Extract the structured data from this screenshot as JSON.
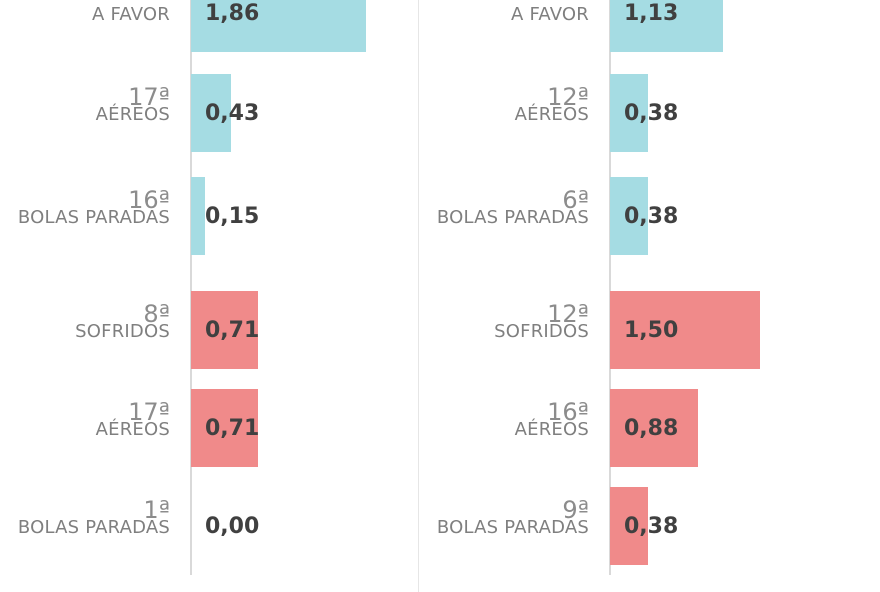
{
  "chart_data": [
    {
      "type": "bar",
      "orientation": "horizontal",
      "rows": [
        {
          "rank": "",
          "category": "A FAVOR",
          "value": 1.86,
          "value_label": "1,86",
          "group": "favor"
        },
        {
          "rank": "17ª",
          "category": "AÉREOS",
          "value": 0.43,
          "value_label": "0,43",
          "group": "favor"
        },
        {
          "rank": "16ª",
          "category": "BOLAS PARADAS",
          "value": 0.15,
          "value_label": "0,15",
          "group": "favor"
        },
        {
          "rank": "8ª",
          "category": "SOFRIDOS",
          "value": 0.71,
          "value_label": "0,71",
          "group": "sofridos"
        },
        {
          "rank": "17ª",
          "category": "AÉREOS",
          "value": 0.71,
          "value_label": "0,71",
          "group": "sofridos"
        },
        {
          "rank": "1ª",
          "category": "BOLAS PARADAS",
          "value": 0.0,
          "value_label": "0,00",
          "group": "sofridos"
        }
      ]
    },
    {
      "type": "bar",
      "orientation": "horizontal",
      "rows": [
        {
          "rank": "",
          "category": "A FAVOR",
          "value": 1.13,
          "value_label": "1,13",
          "group": "favor"
        },
        {
          "rank": "12ª",
          "category": "AÉREOS",
          "value": 0.38,
          "value_label": "0,38",
          "group": "favor"
        },
        {
          "rank": "6ª",
          "category": "BOLAS PARADAS",
          "value": 0.38,
          "value_label": "0,38",
          "group": "favor"
        },
        {
          "rank": "12ª",
          "category": "SOFRIDOS",
          "value": 1.5,
          "value_label": "1,50",
          "group": "sofridos"
        },
        {
          "rank": "16ª",
          "category": "AÉREOS",
          "value": 0.88,
          "value_label": "0,88",
          "group": "sofridos"
        },
        {
          "rank": "9ª",
          "category": "BOLAS PARADAS",
          "value": 0.38,
          "value_label": "0,38",
          "group": "sofridos"
        }
      ]
    }
  ],
  "colors": {
    "favor": "#a5dce3",
    "sofridos": "#f08a8a"
  }
}
